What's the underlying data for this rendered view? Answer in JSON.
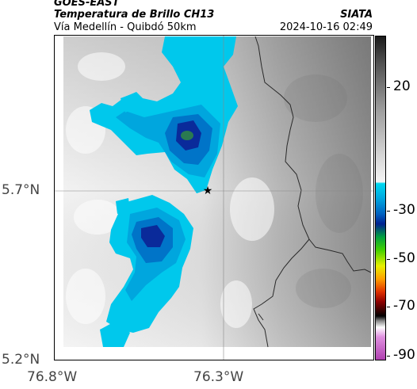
{
  "header": {
    "satellite": "GOES-EAST",
    "product": "Temperatura de Brillo CH13",
    "route": "Vía Medellín - Quibdó 50km",
    "org": "SIATA",
    "datetime": "2024-10-16 02:49"
  },
  "map": {
    "lat_ticks": [
      "5.7°N",
      "5.2°N"
    ],
    "lon_ticks": [
      "76.8°W",
      "76.3°W"
    ],
    "marker": "star",
    "gridlines": true
  },
  "colorbar": {
    "labels": [
      "20",
      "-30",
      "-50",
      "-70",
      "-90"
    ],
    "scale": "brightness temperature"
  },
  "colors": {
    "cloud_cyan": "#00c8ec",
    "cloud_blue": "#0074c8",
    "cloud_deep": "#0a2a9a",
    "land_light": "#e8e8e8",
    "land_dark": "#8a8a8a"
  }
}
